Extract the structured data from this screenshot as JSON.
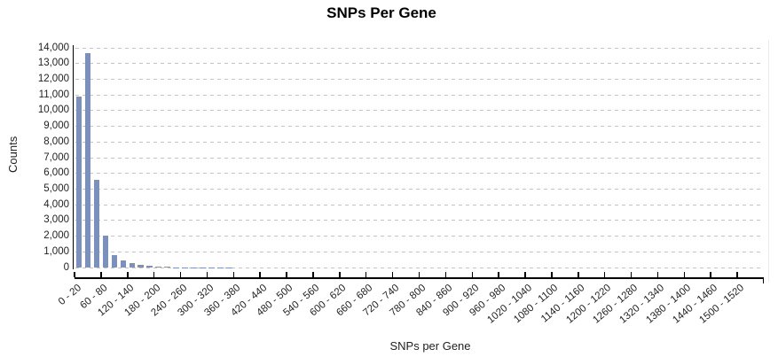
{
  "chart_data": {
    "type": "bar",
    "subtype": "histogram",
    "title": "SNPs Per Gene",
    "xlabel": "SNPs per Gene",
    "ylabel": "Counts",
    "x_start": 0,
    "bin_width": 20,
    "x_axis_end": 1560,
    "ylim": [
      0,
      14000
    ],
    "y_tick_step": 1000,
    "y_tick_labels": [
      "0",
      "1,000",
      "2,000",
      "3,000",
      "4,000",
      "5,000",
      "6,000",
      "7,000",
      "8,000",
      "9,000",
      "10,000",
      "11,000",
      "12,000",
      "13,000",
      "14,000"
    ],
    "x_tick_interval": 60,
    "x_tick_labels": [
      "0 - 20",
      "60 - 80",
      "120 - 140",
      "180 - 200",
      "240 - 260",
      "300 - 320",
      "360 - 380",
      "420 - 440",
      "480 - 500",
      "540 - 560",
      "600 - 620",
      "660 - 680",
      "720 - 740",
      "780 - 800",
      "840 - 860",
      "900 - 920",
      "960 - 980",
      "1020 - 1040",
      "1080 - 1100",
      "1140 - 1160",
      "1200 - 1220",
      "1260 - 1280",
      "1320 - 1340",
      "1380 - 1400",
      "1440 - 1460",
      "1500 - 1520"
    ],
    "values": [
      10900,
      13650,
      5600,
      2050,
      800,
      460,
      280,
      170,
      95,
      55,
      35,
      25,
      18,
      13,
      10,
      8,
      6,
      5,
      4,
      3,
      3,
      2,
      2,
      2,
      1,
      1,
      1,
      1,
      1,
      1,
      1,
      1,
      0,
      0,
      0,
      0,
      0,
      0,
      0,
      0,
      0,
      0,
      0,
      0,
      0,
      0,
      0,
      0,
      0,
      0,
      0,
      0,
      0,
      0,
      0,
      0,
      0,
      0,
      0,
      0,
      0,
      0,
      0,
      0,
      0,
      0,
      0,
      0,
      0,
      0,
      0,
      0,
      0,
      0,
      0,
      1
    ],
    "grid": "horizontal-dashed",
    "legend_position": "none",
    "colors": {
      "bar": "#7b91bb",
      "gridline": "#c4c4c4",
      "axis": "#000000",
      "text": "#1f1f1f",
      "right_border": "#e9e9e9"
    }
  }
}
